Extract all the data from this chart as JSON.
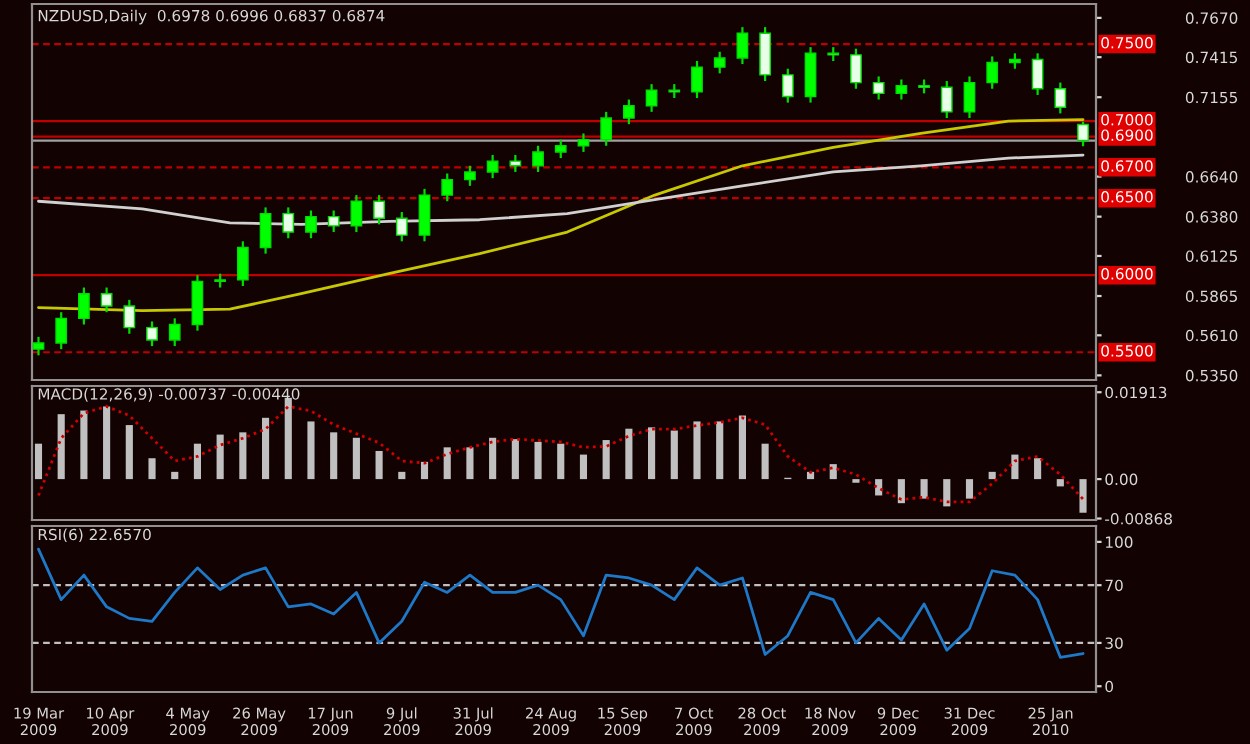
{
  "chart_data": [
    {
      "type": "candlestick",
      "title": "NZDUSD,Daily  0.6978 0.6996 0.6837 0.6874",
      "x": [
        "2009-03-19",
        "2009-03-26",
        "2009-04-02",
        "2009-04-09",
        "2009-04-16",
        "2009-04-23",
        "2009-04-30",
        "2009-05-07",
        "2009-05-14",
        "2009-05-21",
        "2009-05-28",
        "2009-06-04",
        "2009-06-11",
        "2009-06-18",
        "2009-06-25",
        "2009-07-02",
        "2009-07-09",
        "2009-07-16",
        "2009-07-23",
        "2009-07-30",
        "2009-08-06",
        "2009-08-13",
        "2009-08-20",
        "2009-08-27",
        "2009-09-03",
        "2009-09-10",
        "2009-09-17",
        "2009-09-24",
        "2009-10-01",
        "2009-10-08",
        "2009-10-15",
        "2009-10-22",
        "2009-10-29",
        "2009-11-05",
        "2009-11-12",
        "2009-11-19",
        "2009-11-26",
        "2009-12-03",
        "2009-12-10",
        "2009-12-17",
        "2009-12-24",
        "2009-12-31",
        "2010-01-07",
        "2010-01-14",
        "2010-01-21",
        "2010-01-28",
        "2010-02-04"
      ],
      "ohlc": [
        [
          0.552,
          0.56,
          0.548,
          0.556
        ],
        [
          0.556,
          0.576,
          0.552,
          0.572
        ],
        [
          0.572,
          0.592,
          0.568,
          0.588
        ],
        [
          0.588,
          0.592,
          0.576,
          0.58
        ],
        [
          0.58,
          0.584,
          0.562,
          0.566
        ],
        [
          0.566,
          0.57,
          0.554,
          0.558
        ],
        [
          0.558,
          0.572,
          0.554,
          0.568
        ],
        [
          0.568,
          0.6,
          0.564,
          0.596
        ],
        [
          0.596,
          0.601,
          0.592,
          0.597
        ],
        [
          0.597,
          0.622,
          0.593,
          0.618
        ],
        [
          0.618,
          0.644,
          0.614,
          0.64
        ],
        [
          0.64,
          0.644,
          0.624,
          0.628
        ],
        [
          0.628,
          0.642,
          0.624,
          0.638
        ],
        [
          0.638,
          0.642,
          0.628,
          0.632
        ],
        [
          0.632,
          0.652,
          0.628,
          0.648
        ],
        [
          0.648,
          0.652,
          0.633,
          0.637
        ],
        [
          0.637,
          0.641,
          0.622,
          0.626
        ],
        [
          0.626,
          0.656,
          0.622,
          0.652
        ],
        [
          0.652,
          0.666,
          0.648,
          0.662
        ],
        [
          0.662,
          0.671,
          0.658,
          0.667
        ],
        [
          0.667,
          0.678,
          0.663,
          0.674
        ],
        [
          0.674,
          0.678,
          0.667,
          0.671
        ],
        [
          0.671,
          0.684,
          0.667,
          0.68
        ],
        [
          0.68,
          0.688,
          0.676,
          0.684
        ],
        [
          0.684,
          0.692,
          0.68,
          0.688
        ],
        [
          0.688,
          0.706,
          0.684,
          0.702
        ],
        [
          0.702,
          0.714,
          0.698,
          0.71
        ],
        [
          0.71,
          0.724,
          0.706,
          0.72
        ],
        [
          0.72,
          0.724,
          0.715,
          0.719
        ],
        [
          0.719,
          0.739,
          0.715,
          0.735
        ],
        [
          0.735,
          0.745,
          0.731,
          0.741
        ],
        [
          0.741,
          0.761,
          0.737,
          0.757
        ],
        [
          0.757,
          0.761,
          0.726,
          0.73
        ],
        [
          0.73,
          0.734,
          0.712,
          0.716
        ],
        [
          0.716,
          0.748,
          0.712,
          0.744
        ],
        [
          0.744,
          0.748,
          0.739,
          0.743
        ],
        [
          0.743,
          0.747,
          0.721,
          0.725
        ],
        [
          0.725,
          0.729,
          0.714,
          0.718
        ],
        [
          0.718,
          0.727,
          0.714,
          0.723
        ],
        [
          0.723,
          0.727,
          0.718,
          0.722
        ],
        [
          0.722,
          0.726,
          0.702,
          0.706
        ],
        [
          0.706,
          0.729,
          0.702,
          0.725
        ],
        [
          0.725,
          0.742,
          0.721,
          0.738
        ],
        [
          0.738,
          0.744,
          0.734,
          0.74
        ],
        [
          0.74,
          0.744,
          0.717,
          0.721
        ],
        [
          0.721,
          0.725,
          0.705,
          0.709
        ],
        [
          0.6978,
          0.6996,
          0.6837,
          0.6874
        ]
      ],
      "series": [
        {
          "type": "line",
          "color": "#c8c800",
          "x": [
            "2009-03-19",
            "2009-04-20",
            "2009-05-17",
            "2009-06-08",
            "2009-07-05",
            "2009-08-02",
            "2009-08-29",
            "2009-09-25",
            "2009-10-22",
            "2009-11-19",
            "2009-12-16",
            "2010-01-12",
            "2010-02-04"
          ],
          "values": [
            0.579,
            0.577,
            0.578,
            0.588,
            0.601,
            0.614,
            0.628,
            0.652,
            0.671,
            0.683,
            0.692,
            0.7,
            0.701
          ]
        },
        {
          "type": "line",
          "color": "#d0d0d0",
          "x": [
            "2009-03-19",
            "2009-04-20",
            "2009-05-17",
            "2009-06-08",
            "2009-07-05",
            "2009-08-02",
            "2009-08-29",
            "2009-09-25",
            "2009-10-22",
            "2009-11-19",
            "2009-12-16",
            "2010-01-12",
            "2010-02-04"
          ],
          "values": [
            0.648,
            0.643,
            0.634,
            0.633,
            0.635,
            0.636,
            0.64,
            0.649,
            0.658,
            0.667,
            0.671,
            0.676,
            0.678
          ]
        }
      ],
      "xlim": [
        "2009-03-17",
        "2010-02-08"
      ],
      "ylim": [
        0.532,
        0.776
      ],
      "yticks": [
        {
          "value": 0.535,
          "label": "0.5350"
        },
        {
          "value": 0.561,
          "label": "0.5610"
        },
        {
          "value": 0.5865,
          "label": "0.5865"
        },
        {
          "value": 0.6125,
          "label": "0.6125"
        },
        {
          "value": 0.638,
          "label": "0.6380"
        },
        {
          "value": 0.664,
          "label": "0.6640"
        },
        {
          "value": 0.7155,
          "label": "0.7155"
        },
        {
          "value": 0.7415,
          "label": "0.7415"
        },
        {
          "value": 0.767,
          "label": "0.7670"
        }
      ],
      "ref_lines": [
        {
          "axis": "y",
          "value": 0.75,
          "label": "0.7500",
          "color": "#c00000",
          "line_style": "dashed"
        },
        {
          "axis": "y",
          "value": 0.7,
          "label": "0.7000",
          "color": "#c00000",
          "line_style": "solid"
        },
        {
          "axis": "y",
          "value": 0.69,
          "label": "0.6900",
          "color": "#c00000",
          "line_style": "solid"
        },
        {
          "axis": "y",
          "value": 0.67,
          "label": "0.6700",
          "color": "#c00000",
          "line_style": "dashed"
        },
        {
          "axis": "y",
          "value": 0.65,
          "label": "0.6500",
          "color": "#c00000",
          "line_style": "dashed"
        },
        {
          "axis": "y",
          "value": 0.6,
          "label": "0.6000",
          "color": "#c00000",
          "line_style": "solid"
        },
        {
          "axis": "y",
          "value": 0.55,
          "label": "0.5500",
          "color": "#c00000",
          "line_style": "dashed"
        },
        {
          "axis": "y",
          "value": 0.6874,
          "color": "#a0a0a0",
          "line_style": "solid"
        }
      ],
      "tick_labels": "y"
    },
    {
      "type": "bar",
      "title": "MACD(12,26,9) -0.00737 -0.00440",
      "x": [
        "2009-03-19",
        "2009-03-26",
        "2009-04-02",
        "2009-04-09",
        "2009-04-16",
        "2009-04-23",
        "2009-04-30",
        "2009-05-07",
        "2009-05-14",
        "2009-05-21",
        "2009-05-28",
        "2009-06-04",
        "2009-06-11",
        "2009-06-18",
        "2009-06-25",
        "2009-07-02",
        "2009-07-09",
        "2009-07-16",
        "2009-07-23",
        "2009-07-30",
        "2009-08-06",
        "2009-08-13",
        "2009-08-20",
        "2009-08-27",
        "2009-09-03",
        "2009-09-10",
        "2009-09-17",
        "2009-09-24",
        "2009-10-01",
        "2009-10-08",
        "2009-10-15",
        "2009-10-22",
        "2009-10-29",
        "2009-11-05",
        "2009-11-12",
        "2009-11-19",
        "2009-11-26",
        "2009-12-03",
        "2009-12-10",
        "2009-12-17",
        "2009-12-24",
        "2009-12-31",
        "2010-01-07",
        "2010-01-14",
        "2010-01-21",
        "2010-01-28",
        "2010-02-04"
      ],
      "series": [
        {
          "type": "bar",
          "color": "#c0c0c0",
          "values": [
            0.0078,
            0.0143,
            0.0151,
            0.016,
            0.0119,
            0.0046,
            0.0016,
            0.0078,
            0.0098,
            0.0103,
            0.0135,
            0.0179,
            0.0127,
            0.0103,
            0.0091,
            0.0062,
            0.0016,
            0.0038,
            0.007,
            0.007,
            0.0091,
            0.0088,
            0.0082,
            0.0078,
            0.0054,
            0.0086,
            0.0111,
            0.0114,
            0.0107,
            0.0127,
            0.0127,
            0.014,
            0.0078,
            0.0003,
            0.0016,
            0.0033,
            -0.0008,
            -0.0036,
            -0.0053,
            -0.0043,
            -0.006,
            -0.0043,
            0.0016,
            0.0054,
            0.0046,
            -0.0016,
            -0.0074
          ]
        },
        {
          "type": "line",
          "color": "#d00000",
          "line_style": "dotted",
          "values": [
            -0.0036,
            0.009,
            0.0145,
            0.016,
            0.014,
            0.009,
            0.004,
            0.005,
            0.0075,
            0.009,
            0.011,
            0.016,
            0.015,
            0.012,
            0.01,
            0.008,
            0.004,
            0.0035,
            0.0055,
            0.007,
            0.0082,
            0.0088,
            0.0085,
            0.0082,
            0.007,
            0.0072,
            0.0095,
            0.011,
            0.011,
            0.0118,
            0.0125,
            0.0135,
            0.012,
            0.005,
            0.0015,
            0.0025,
            0.001,
            -0.002,
            -0.0045,
            -0.004,
            -0.005,
            -0.005,
            -0.001,
            0.004,
            0.005,
            0.001,
            -0.0044
          ]
        }
      ],
      "xlim": [
        "2009-03-17",
        "2010-02-08"
      ],
      "ylim": [
        -0.009,
        0.0205
      ],
      "yticks": [
        {
          "value": 0.01913,
          "label": "0.01913"
        },
        {
          "value": 0,
          "label": "0.00"
        },
        {
          "value": -0.00868,
          "label": "-0.00868"
        }
      ],
      "tick_labels": "y"
    },
    {
      "type": "line",
      "title": "RSI(6) 22.6570",
      "x": [
        "2009-03-19",
        "2009-03-26",
        "2009-04-02",
        "2009-04-09",
        "2009-04-16",
        "2009-04-23",
        "2009-04-30",
        "2009-05-07",
        "2009-05-14",
        "2009-05-21",
        "2009-05-28",
        "2009-06-04",
        "2009-06-11",
        "2009-06-18",
        "2009-06-25",
        "2009-07-02",
        "2009-07-09",
        "2009-07-16",
        "2009-07-23",
        "2009-07-30",
        "2009-08-06",
        "2009-08-13",
        "2009-08-20",
        "2009-08-27",
        "2009-09-03",
        "2009-09-10",
        "2009-09-17",
        "2009-09-24",
        "2009-10-01",
        "2009-10-08",
        "2009-10-15",
        "2009-10-22",
        "2009-10-29",
        "2009-11-05",
        "2009-11-12",
        "2009-11-19",
        "2009-11-26",
        "2009-12-03",
        "2009-12-10",
        "2009-12-17",
        "2009-12-24",
        "2009-12-31",
        "2010-01-07",
        "2010-01-14",
        "2010-01-21",
        "2010-01-28",
        "2010-02-04"
      ],
      "series": [
        {
          "color": "#1e78c8",
          "values": [
            95,
            60,
            77,
            55,
            47,
            45,
            65,
            82,
            67,
            77,
            82,
            55,
            57,
            50,
            65,
            30,
            45,
            72,
            65,
            77,
            65,
            65,
            70,
            60,
            35,
            77,
            75,
            70,
            60,
            82,
            70,
            75,
            22,
            35,
            65,
            60,
            30,
            47,
            32,
            57,
            25,
            40,
            80,
            77,
            60,
            20,
            22.657
          ]
        }
      ],
      "xlim": [
        "2009-03-17",
        "2010-02-08"
      ],
      "ylim": [
        -4,
        111
      ],
      "yticks": [
        0,
        30,
        70,
        100
      ],
      "xticks": [
        {
          "value": "2009-03-19",
          "label": "19 Mar 2009"
        },
        {
          "value": "2009-04-10",
          "label": "10 Apr 2009"
        },
        {
          "value": "2009-05-04",
          "label": "4 May 2009"
        },
        {
          "value": "2009-05-26",
          "label": "26 May 2009"
        },
        {
          "value": "2009-06-17",
          "label": "17 Jun 2009"
        },
        {
          "value": "2009-07-09",
          "label": "9 Jul 2009"
        },
        {
          "value": "2009-07-31",
          "label": "31 Jul 2009"
        },
        {
          "value": "2009-08-24",
          "label": "24 Aug 2009"
        },
        {
          "value": "2009-09-15",
          "label": "15 Sep 2009"
        },
        {
          "value": "2009-10-07",
          "label": "7 Oct 2009"
        },
        {
          "value": "2009-10-28",
          "label": "28 Oct 2009"
        },
        {
          "value": "2009-11-18",
          "label": "18 Nov 2009"
        },
        {
          "value": "2009-12-09",
          "label": "9 Dec 2009"
        },
        {
          "value": "2009-12-31",
          "label": "31 Dec 2009"
        },
        {
          "value": "2010-01-25",
          "label": "25 Jan 2010"
        }
      ],
      "ref_lines": [
        {
          "axis": "y",
          "value": 70,
          "color": "#c0c0c0",
          "line_style": "dashed"
        },
        {
          "axis": "y",
          "value": 30,
          "color": "#c0c0c0",
          "line_style": "dashed"
        }
      ]
    }
  ]
}
